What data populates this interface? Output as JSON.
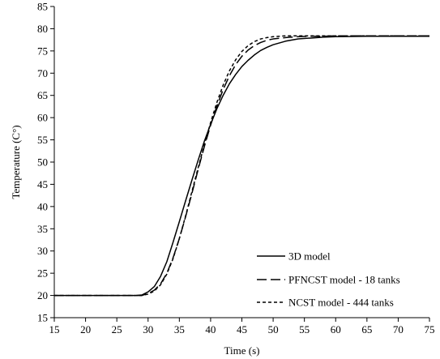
{
  "chart_data": {
    "type": "line",
    "title": "",
    "xlabel": "Time (s)",
    "ylabel": "Temperature (C°)",
    "xlim": [
      15,
      75
    ],
    "ylim": [
      15,
      85
    ],
    "xticks": [
      15,
      20,
      25,
      30,
      35,
      40,
      45,
      50,
      55,
      60,
      65,
      70,
      75
    ],
    "yticks": [
      15,
      20,
      25,
      30,
      35,
      40,
      45,
      50,
      55,
      60,
      65,
      70,
      75,
      80,
      85
    ],
    "grid": false,
    "legend_position": "bottom-right",
    "series": [
      {
        "name": "3D model",
        "style": "solid",
        "x": [
          15,
          20,
          25,
          28,
          29,
          30,
          31,
          32,
          33,
          34,
          35,
          36,
          37,
          38,
          39,
          40,
          41,
          42,
          43,
          44,
          45,
          46,
          47,
          48,
          49,
          50,
          52,
          54,
          56,
          58,
          60,
          65,
          70,
          75
        ],
        "y": [
          20,
          20,
          20,
          20,
          20.1,
          20.8,
          22.0,
          24.3,
          27.6,
          32.0,
          36.6,
          41.3,
          45.9,
          50.4,
          54.7,
          58.5,
          62.0,
          65.0,
          67.6,
          69.7,
          71.5,
          72.9,
          74.1,
          75.1,
          75.8,
          76.4,
          77.2,
          77.7,
          77.9,
          78.1,
          78.2,
          78.3,
          78.3,
          78.3
        ]
      },
      {
        "name": "PFNCST model - 18 tanks",
        "style": "dashed",
        "x": [
          15,
          20,
          25,
          29,
          30,
          31,
          32,
          33,
          34,
          35,
          36,
          37,
          38,
          39,
          40,
          41,
          42,
          43,
          44,
          45,
          46,
          47,
          48,
          49,
          50,
          52,
          54,
          56,
          58,
          60,
          65,
          70,
          75
        ],
        "y": [
          20,
          20,
          20,
          20,
          20.4,
          21.2,
          22.6,
          25.0,
          28.5,
          32.8,
          37.7,
          42.9,
          48.3,
          53.5,
          58.3,
          62.6,
          66.3,
          69.4,
          71.9,
          73.8,
          75.2,
          76.2,
          76.9,
          77.4,
          77.7,
          78.0,
          78.2,
          78.3,
          78.3,
          78.4,
          78.4,
          78.4,
          78.4
        ]
      },
      {
        "name": "NCST model - 444 tanks",
        "style": "dotted",
        "x": [
          15,
          20,
          25,
          29,
          30,
          31,
          32,
          33,
          34,
          35,
          36,
          37,
          38,
          39,
          40,
          41,
          42,
          43,
          44,
          45,
          46,
          47,
          48,
          49,
          50,
          52,
          54,
          56,
          58,
          60,
          65,
          70,
          75
        ],
        "y": [
          20,
          20,
          20,
          20,
          20.3,
          21.0,
          22.4,
          24.8,
          28.3,
          32.8,
          37.9,
          43.3,
          48.7,
          53.9,
          58.9,
          63.4,
          67.3,
          70.5,
          73.0,
          74.9,
          76.2,
          77.1,
          77.7,
          78.0,
          78.2,
          78.4,
          78.4,
          78.4,
          78.4,
          78.4,
          78.4,
          78.4,
          78.4
        ]
      }
    ]
  }
}
